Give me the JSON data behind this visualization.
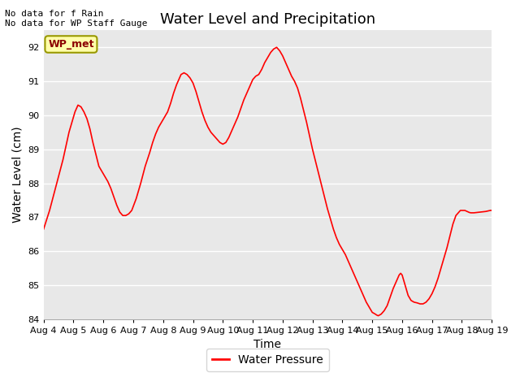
{
  "title": "Water Level and Precipitation",
  "xlabel": "Time",
  "ylabel": "Water Level (cm)",
  "note_line1": "No data for f Rain",
  "note_line2": "No data for WP Staff Gauge",
  "legend_label": "WP_met",
  "legend_box_label": "Water Pressure",
  "ylim": [
    84.0,
    92.5
  ],
  "yticks": [
    84.0,
    85.0,
    86.0,
    87.0,
    88.0,
    89.0,
    90.0,
    91.0,
    92.0
  ],
  "x_tick_labels": [
    "Aug 4",
    "Aug 5",
    "Aug 6",
    "Aug 7",
    "Aug 8",
    "Aug 9",
    "Aug 10",
    "Aug 11",
    "Aug 12",
    "Aug 13",
    "Aug 14",
    "Aug 15",
    "Aug 16",
    "Aug 17",
    "Aug 18",
    "Aug 19"
  ],
  "line_color": "#ff0000",
  "background_color": "#e8e8e8",
  "fig_background_color": "#ffffff",
  "grid_color": "#ffffff",
  "title_fontsize": 13,
  "axis_label_fontsize": 10,
  "tick_fontsize": 8,
  "note_fontsize": 8,
  "wp_met_fontsize": 9,
  "legend_fontsize": 10,
  "x_data": [
    0.0,
    0.2,
    0.35,
    0.5,
    0.65,
    0.75,
    0.85,
    0.95,
    1.05,
    1.15,
    1.25,
    1.35,
    1.45,
    1.55,
    1.65,
    1.75,
    1.85,
    1.95,
    2.05,
    2.15,
    2.25,
    2.35,
    2.45,
    2.55,
    2.65,
    2.75,
    2.85,
    2.95,
    3.1,
    3.25,
    3.4,
    3.55,
    3.65,
    3.75,
    3.85,
    3.95,
    4.05,
    4.15,
    4.25,
    4.35,
    4.45,
    4.5,
    4.55,
    4.6,
    4.7,
    4.8,
    4.9,
    5.0,
    5.1,
    5.2,
    5.3,
    5.4,
    5.5,
    5.6,
    5.65,
    5.7,
    5.75,
    5.8,
    5.85,
    5.9,
    6.0,
    6.1,
    6.2,
    6.3,
    6.4,
    6.5,
    6.6,
    6.7,
    6.8,
    6.9,
    7.0,
    7.05,
    7.1,
    7.2,
    7.3,
    7.4,
    7.5,
    7.6,
    7.65,
    7.7,
    7.8,
    7.9,
    8.0,
    8.1,
    8.2,
    8.3,
    8.4,
    8.5,
    8.6,
    8.7,
    8.8,
    8.9,
    9.0,
    9.1,
    9.2,
    9.3,
    9.4,
    9.5,
    9.6,
    9.7,
    9.8,
    9.9,
    10.0,
    10.1,
    10.2,
    10.3,
    10.4,
    10.5,
    10.6,
    10.7,
    10.8,
    10.9,
    11.0,
    11.1,
    11.15,
    11.2,
    11.3,
    11.4,
    11.5,
    11.6,
    11.7,
    11.8,
    11.85,
    11.9,
    11.95,
    12.0,
    12.05,
    12.1,
    12.15,
    12.2,
    12.3,
    12.4,
    12.5,
    12.6,
    12.7,
    12.8,
    12.9,
    13.0,
    13.1,
    13.2,
    13.3,
    13.4,
    13.5,
    13.6,
    13.7,
    13.8,
    13.85,
    13.9,
    13.95,
    14.0,
    14.1,
    14.15,
    14.2,
    14.25,
    14.3,
    14.4,
    14.5,
    14.6,
    14.7,
    14.8,
    14.85,
    14.9,
    14.95,
    15.0
  ],
  "y_data": [
    86.65,
    87.2,
    87.7,
    88.2,
    88.7,
    89.1,
    89.5,
    89.8,
    90.1,
    90.3,
    90.25,
    90.1,
    89.9,
    89.6,
    89.2,
    88.85,
    88.5,
    88.35,
    88.2,
    88.05,
    87.85,
    87.6,
    87.35,
    87.15,
    87.05,
    87.05,
    87.1,
    87.2,
    87.55,
    88.0,
    88.5,
    88.9,
    89.2,
    89.45,
    89.65,
    89.8,
    89.95,
    90.1,
    90.35,
    90.65,
    90.9,
    91.0,
    91.1,
    91.2,
    91.25,
    91.2,
    91.1,
    90.95,
    90.7,
    90.4,
    90.1,
    89.85,
    89.65,
    89.5,
    89.45,
    89.4,
    89.35,
    89.3,
    89.25,
    89.2,
    89.15,
    89.2,
    89.35,
    89.55,
    89.75,
    89.95,
    90.2,
    90.45,
    90.65,
    90.85,
    91.05,
    91.1,
    91.15,
    91.2,
    91.35,
    91.55,
    91.7,
    91.85,
    91.9,
    91.95,
    92.0,
    91.9,
    91.75,
    91.55,
    91.35,
    91.15,
    91.0,
    90.8,
    90.5,
    90.15,
    89.8,
    89.4,
    89.0,
    88.65,
    88.3,
    87.95,
    87.6,
    87.25,
    86.95,
    86.65,
    86.4,
    86.2,
    86.05,
    85.9,
    85.7,
    85.5,
    85.3,
    85.1,
    84.9,
    84.7,
    84.5,
    84.35,
    84.2,
    84.15,
    84.12,
    84.1,
    84.15,
    84.25,
    84.4,
    84.65,
    84.9,
    85.1,
    85.2,
    85.3,
    85.35,
    85.3,
    85.15,
    85.0,
    84.85,
    84.7,
    84.55,
    84.5,
    84.48,
    84.45,
    84.45,
    84.5,
    84.6,
    84.75,
    84.95,
    85.2,
    85.5,
    85.8,
    86.1,
    86.45,
    86.8,
    87.05,
    87.1,
    87.15,
    87.2,
    87.2,
    87.2,
    87.18,
    87.16,
    87.14,
    87.13,
    87.13,
    87.14,
    87.15,
    87.16,
    87.17,
    87.18,
    87.19,
    87.2,
    87.2
  ]
}
